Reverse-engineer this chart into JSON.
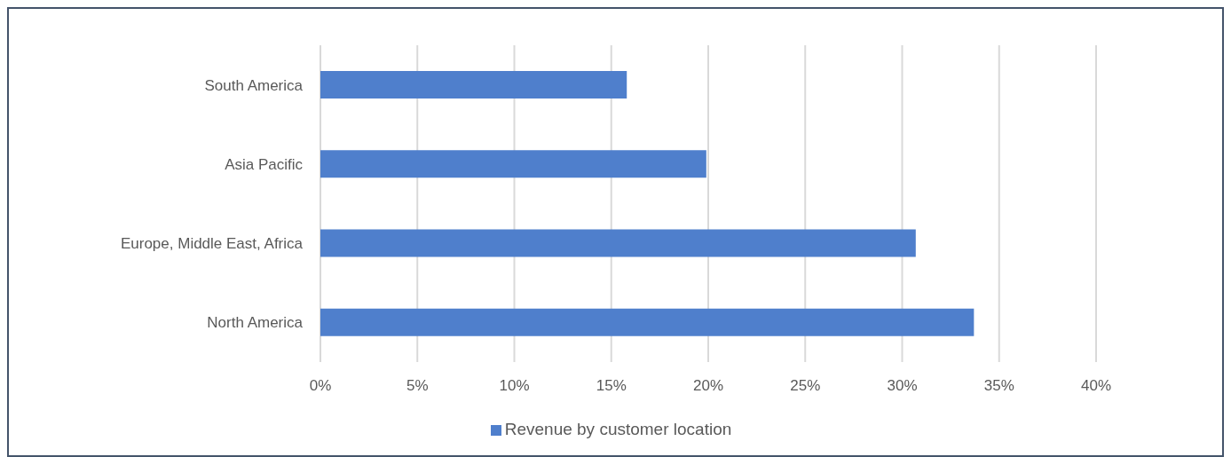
{
  "chart_data": {
    "type": "bar",
    "orientation": "horizontal",
    "categories": [
      "South America",
      "Asia Pacific",
      "Europe,  Middle East, Africa",
      "North America"
    ],
    "series": [
      {
        "name": "Revenue by customer location",
        "color": "#4f7fcc",
        "values": [
          15.8,
          19.9,
          30.7,
          33.7
        ]
      }
    ],
    "xlim": [
      0,
      40
    ],
    "xticks": [
      {
        "value": 0,
        "label": "0%"
      },
      {
        "value": 5,
        "label": "5%"
      },
      {
        "value": 10,
        "label": "10%"
      },
      {
        "value": 15,
        "label": "15%"
      },
      {
        "value": 20,
        "label": "20%"
      },
      {
        "value": 25,
        "label": "25%"
      },
      {
        "value": 30,
        "label": "30%"
      },
      {
        "value": 35,
        "label": "35%"
      },
      {
        "value": 40,
        "label": "40%"
      }
    ],
    "grid": "x",
    "legend": "bottom"
  }
}
